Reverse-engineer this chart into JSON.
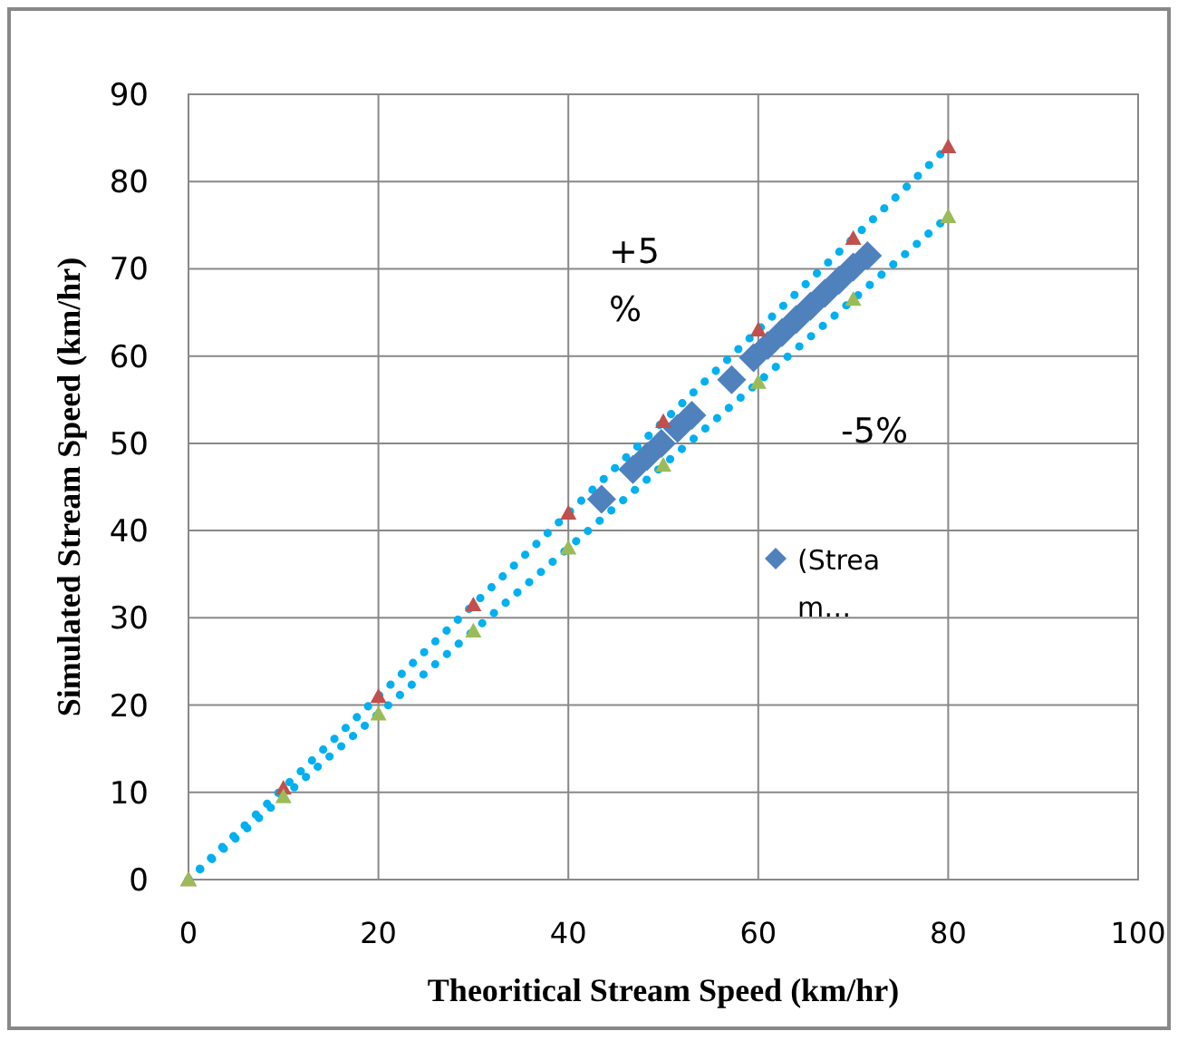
{
  "chart_data": {
    "type": "scatter",
    "xlabel": "Theoritical Stream Speed (km/hr)",
    "ylabel": "Simulated Stream Speed (km/hr)",
    "xlim": [
      0,
      100
    ],
    "xticks": [
      0,
      20,
      40,
      60,
      80,
      100
    ],
    "ylim": [
      0,
      90
    ],
    "yticks": [
      0,
      10,
      20,
      30,
      40,
      50,
      60,
      70,
      80,
      90
    ],
    "grid": true,
    "legend": "right",
    "series": [
      {
        "name": "(Stream…",
        "marker": "diamond",
        "color": "#4f81bd",
        "x": [
          43.5,
          46.8,
          48.3,
          49.8,
          51.5,
          53,
          57.2,
          59.5,
          61,
          62.5,
          64,
          65.5,
          67,
          68.5,
          70,
          71.5
        ],
        "values": [
          43.6,
          47,
          48.5,
          50,
          51.7,
          53.2,
          57.3,
          59.8,
          61.2,
          62.7,
          64.2,
          65.7,
          67.2,
          68.7,
          70.2,
          71.5
        ]
      },
      {
        "marker": "triangle",
        "color": "#c0504d",
        "x": [
          0,
          10,
          20,
          30,
          40,
          50,
          60,
          70,
          80
        ],
        "values": [
          0,
          10.5,
          21,
          31.5,
          42,
          52.5,
          63,
          73.5,
          84
        ]
      },
      {
        "marker": "triangle",
        "color": "#9bbb59",
        "x": [
          0,
          10,
          20,
          30,
          40,
          50,
          60,
          70,
          80
        ],
        "values": [
          0,
          9.5,
          19,
          28.5,
          38,
          47.5,
          57,
          66.5,
          76
        ]
      },
      {
        "type": "line",
        "marker": "none",
        "line_style": "dotted",
        "color": "#00b0f0",
        "x": [
          0,
          80
        ],
        "values": [
          0,
          84
        ]
      },
      {
        "type": "line",
        "marker": "none",
        "line_style": "dotted",
        "color": "#00b0f0",
        "x": [
          0,
          80
        ],
        "values": [
          0,
          76
        ]
      }
    ],
    "annotations": [
      "+5 %",
      "-5%"
    ]
  }
}
